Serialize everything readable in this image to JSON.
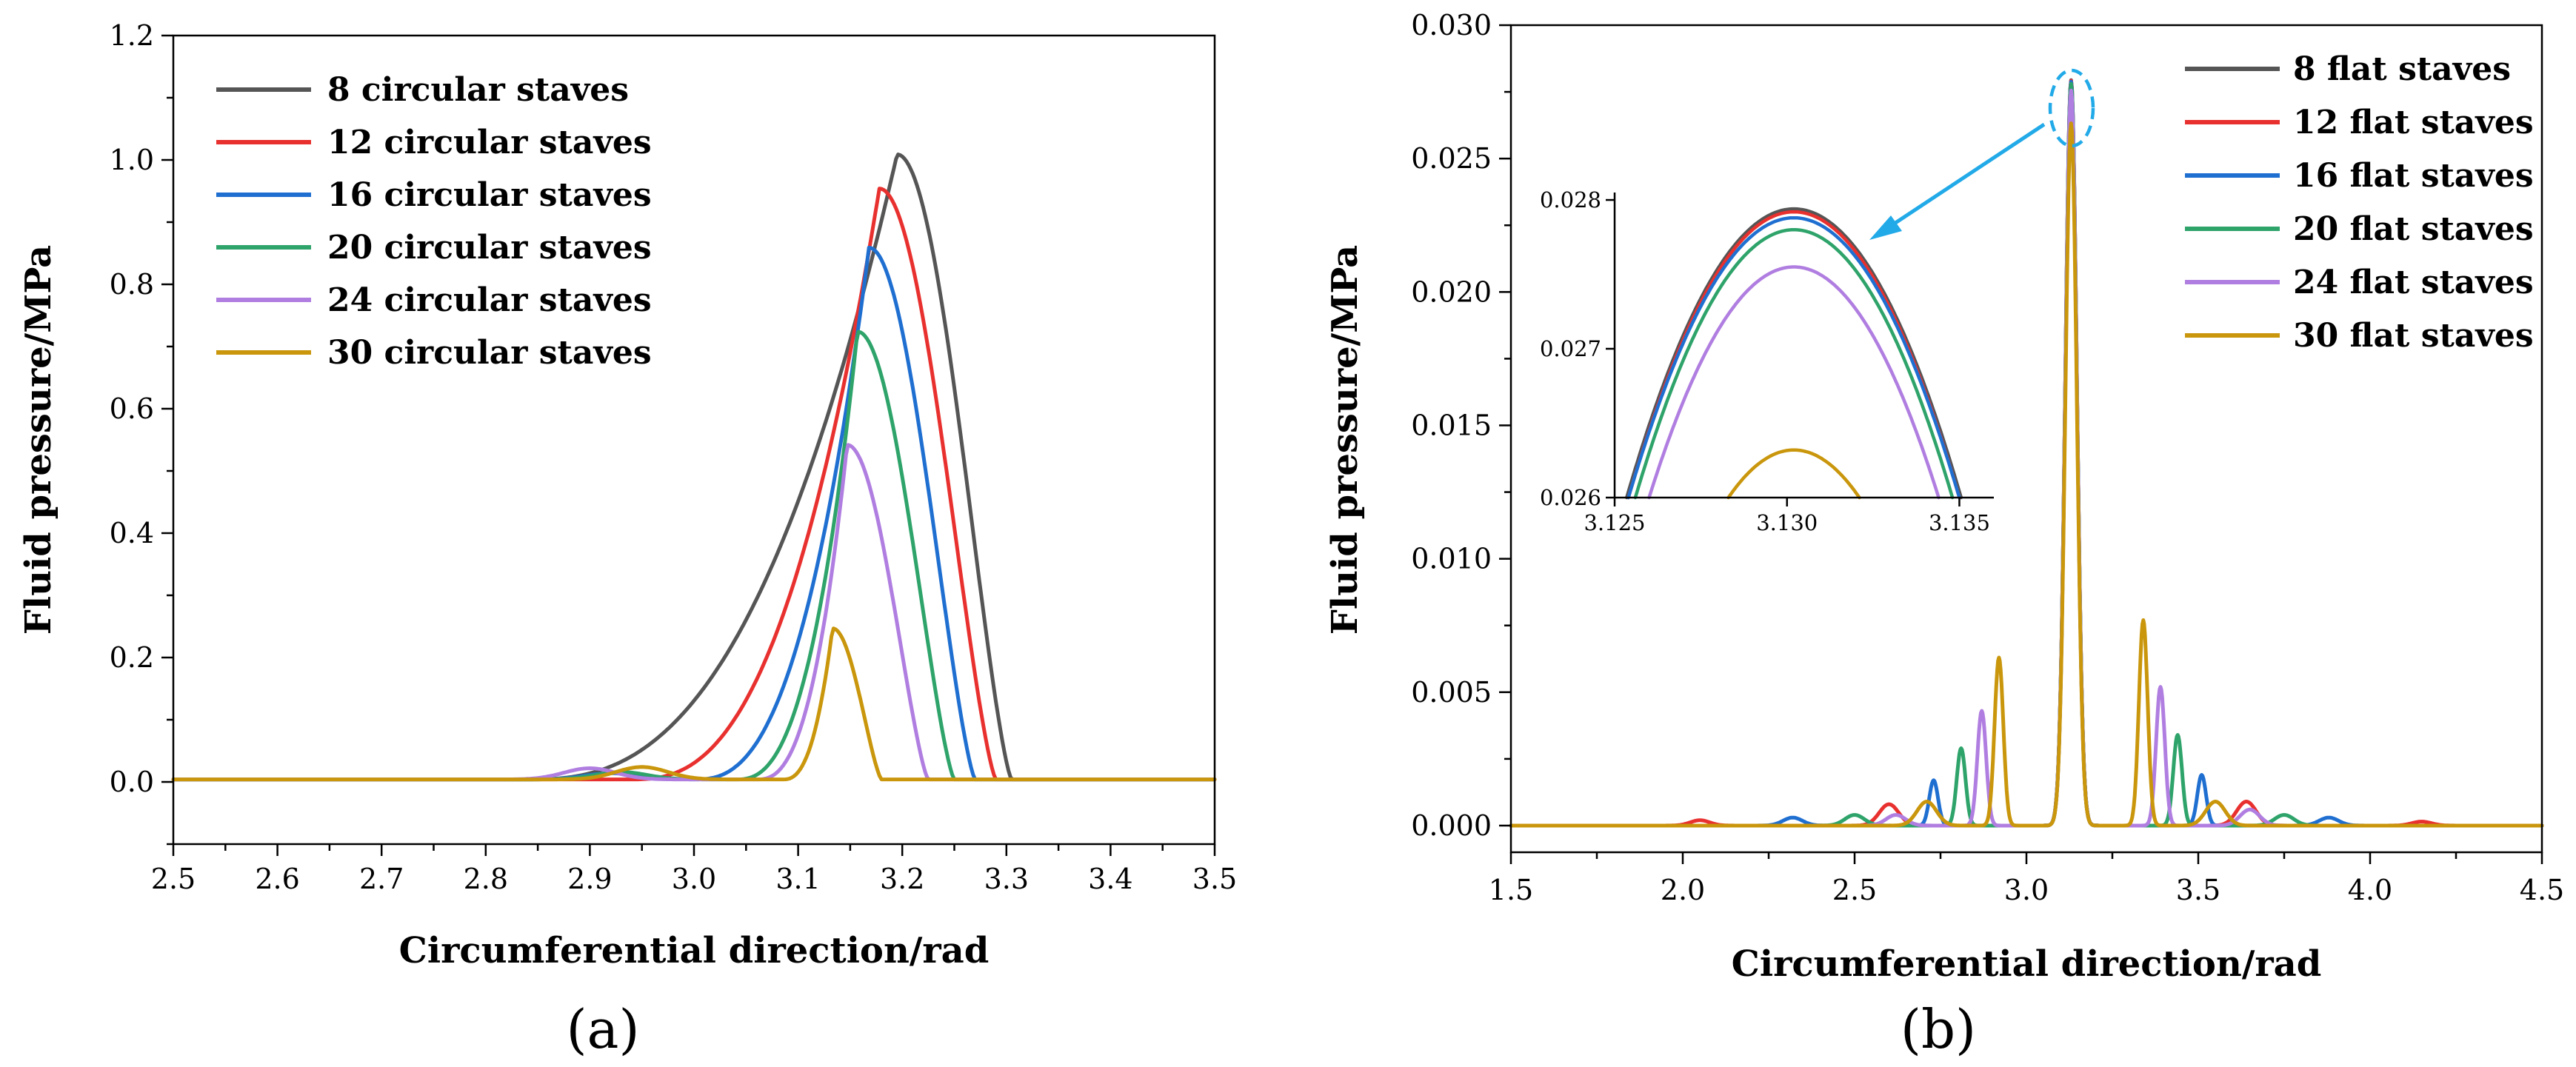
{
  "chart_data": [
    {
      "type": "line",
      "panel_label": "(a)",
      "xlabel": "Circumferential direction/rad",
      "ylabel": "Fluid pressure/MPa",
      "xlim": [
        2.5,
        3.5
      ],
      "ylim": [
        -0.1,
        1.2
      ],
      "xticks": [
        "2.5",
        "2.6",
        "2.7",
        "2.8",
        "2.9",
        "3.0",
        "3.1",
        "3.2",
        "3.3",
        "3.4",
        "3.5"
      ],
      "yticks": [
        "0.0",
        "0.2",
        "0.4",
        "0.6",
        "0.8",
        "1.0",
        "1.2"
      ],
      "legend_position": "top-left",
      "series": [
        {
          "name": "8 circular staves",
          "color": "#555555",
          "peak_x": 3.195,
          "peak": 1.005,
          "start": 2.84,
          "end": 3.305,
          "hump_x": 0,
          "hump": 0
        },
        {
          "name": "12 circular staves",
          "color": "#e8312f",
          "peak_x": 3.178,
          "peak": 0.95,
          "start": 2.94,
          "end": 3.29,
          "hump_x": 0,
          "hump": 0
        },
        {
          "name": "16 circular staves",
          "color": "#1f6fd1",
          "peak_x": 3.168,
          "peak": 0.855,
          "start": 3.0,
          "end": 3.27,
          "hump_x": 2.92,
          "hump": 0.01
        },
        {
          "name": "20 circular staves",
          "color": "#2ea36a",
          "peak_x": 3.157,
          "peak": 0.72,
          "start": 3.04,
          "end": 3.25,
          "hump_x": 2.93,
          "hump": 0.012
        },
        {
          "name": "24 circular staves",
          "color": "#b07ee0",
          "peak_x": 3.147,
          "peak": 0.538,
          "start": 3.06,
          "end": 3.225,
          "hump_x": 2.9,
          "hump": 0.018
        },
        {
          "name": "30 circular staves",
          "color": "#c9960c",
          "peak_x": 3.133,
          "peak": 0.243,
          "start": 3.085,
          "end": 3.18,
          "hump_x": 2.95,
          "hump": 0.02
        }
      ]
    },
    {
      "type": "line",
      "panel_label": "(b)",
      "xlabel": "Circumferential direction/rad",
      "ylabel": "Fluid pressure/MPa",
      "xlim": [
        1.5,
        4.5
      ],
      "ylim": [
        -0.001,
        0.03
      ],
      "xticks": [
        "1.5",
        "2.0",
        "2.5",
        "3.0",
        "3.5",
        "4.0",
        "4.5"
      ],
      "yticks": [
        "0.000",
        "0.005",
        "0.010",
        "0.015",
        "0.020",
        "0.025",
        "0.030"
      ],
      "legend_position": "top-right",
      "main_peak_x": 3.13,
      "main_peak_width": 0.035,
      "series": [
        {
          "name": "8 flat staves",
          "color": "#555555",
          "main_peak": 0.02794,
          "side_peaks": []
        },
        {
          "name": "12 flat staves",
          "color": "#e8312f",
          "main_peak": 0.02792,
          "side_peaks": [
            [
              2.6,
              0.0008
            ],
            [
              3.64,
              0.0009
            ],
            [
              2.05,
              0.0002
            ],
            [
              4.15,
              0.00015
            ]
          ]
        },
        {
          "name": "16 flat staves",
          "color": "#1f6fd1",
          "main_peak": 0.02788,
          "side_peaks": [
            [
              2.73,
              0.0017
            ],
            [
              3.51,
              0.0019
            ],
            [
              2.32,
              0.0003
            ],
            [
              3.88,
              0.0003
            ]
          ]
        },
        {
          "name": "20 flat staves",
          "color": "#2ea36a",
          "main_peak": 0.0278,
          "side_peaks": [
            [
              2.81,
              0.0029
            ],
            [
              3.44,
              0.0034
            ],
            [
              2.5,
              0.0004
            ],
            [
              3.75,
              0.0004
            ]
          ]
        },
        {
          "name": "24 flat staves",
          "color": "#b07ee0",
          "main_peak": 0.02755,
          "side_peaks": [
            [
              2.87,
              0.0043
            ],
            [
              3.39,
              0.0052
            ],
            [
              2.62,
              0.0004
            ],
            [
              3.65,
              0.0006
            ]
          ]
        },
        {
          "name": "30 flat staves",
          "color": "#c9960c",
          "main_peak": 0.02632,
          "side_peaks": [
            [
              2.92,
              0.0063
            ],
            [
              3.34,
              0.0077
            ],
            [
              2.71,
              0.0009
            ],
            [
              3.55,
              0.0009
            ]
          ]
        }
      ],
      "inset": {
        "xlim": [
          3.125,
          3.136
        ],
        "ylim": [
          0.026,
          0.02805
        ],
        "xticks": [
          "3.125",
          "3.130",
          "3.135"
        ],
        "yticks": [
          "0.026",
          "0.027",
          "0.028"
        ],
        "center_x": 3.1302,
        "series": [
          {
            "color": "#555555",
            "peak": 0.02794,
            "half_width": 0.00485
          },
          {
            "color": "#e8312f",
            "peak": 0.02792,
            "half_width": 0.0048
          },
          {
            "color": "#1f6fd1",
            "peak": 0.02788,
            "half_width": 0.0048
          },
          {
            "color": "#2ea36a",
            "peak": 0.0278,
            "half_width": 0.0046
          },
          {
            "color": "#b07ee0",
            "peak": 0.02755,
            "half_width": 0.0042
          },
          {
            "color": "#c9960c",
            "peak": 0.02632,
            "half_width": 0.0019
          }
        ]
      }
    }
  ]
}
